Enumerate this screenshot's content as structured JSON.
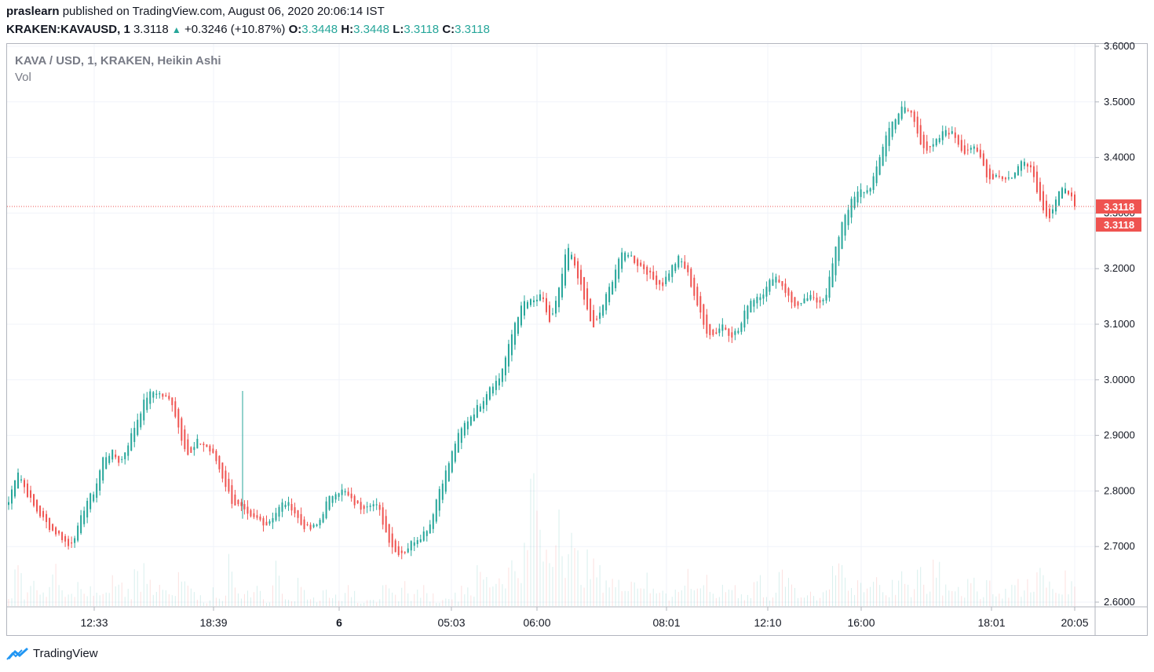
{
  "header": {
    "author": "praslearn",
    "published_text": "published on TradingView.com, August 06, 2020 20:06:14 IST",
    "symbol": "KRAKEN:KAVAUSD, 1",
    "last": "3.3118",
    "arrow_icon": "triangle-up-icon",
    "change": "+0.3246 (+10.87%)",
    "o_label": "O:",
    "o_value": "3.3448",
    "h_label": "H:",
    "h_value": "3.3448",
    "l_label": "L:",
    "l_value": "3.3118",
    "c_label": "C:",
    "c_value": "3.3118"
  },
  "legend": {
    "title": "KAVA / USD, 1, KRAKEN, Heikin Ashi",
    "volume": "Vol"
  },
  "footer": {
    "brand": "TradingView",
    "logo_icon": "tradingview-logo-icon"
  },
  "colors": {
    "up": "#26a69a",
    "down": "#ef5350",
    "grid": "#f0f3fa",
    "axis_text": "#131722",
    "price_line": "#ef5350"
  },
  "chart_data": {
    "type": "candlestick",
    "style": "Heikin Ashi",
    "ylim": [
      2.6,
      3.6
    ],
    "y_ticks": [
      "3.6000",
      "3.5000",
      "3.4000",
      "3.3000",
      "3.2000",
      "3.1000",
      "3.0000",
      "2.9000",
      "2.8000",
      "2.7000",
      "2.6000"
    ],
    "x_ticks": [
      "12:33",
      "18:39",
      "6",
      "05:03",
      "06:00",
      "08:01",
      "12:10",
      "16:00",
      "18:01",
      "20:05"
    ],
    "last_price": 3.3118,
    "price_labels": [
      "3.3118",
      "3.3118"
    ],
    "close_path": [
      2.78,
      2.84,
      2.8,
      2.77,
      2.75,
      2.73,
      2.72,
      2.7,
      2.73,
      2.78,
      2.8,
      2.86,
      2.87,
      2.85,
      2.89,
      2.93,
      2.97,
      2.98,
      2.97,
      2.96,
      2.9,
      2.86,
      2.89,
      2.88,
      2.86,
      2.82,
      2.78,
      2.77,
      2.75,
      2.75,
      2.74,
      2.76,
      2.78,
      2.77,
      2.74,
      2.73,
      2.74,
      2.78,
      2.8,
      2.8,
      2.78,
      2.77,
      2.78,
      2.77,
      2.72,
      2.69,
      2.69,
      2.71,
      2.72,
      2.74,
      2.8,
      2.84,
      2.89,
      2.92,
      2.94,
      2.96,
      2.99,
      3.0,
      3.05,
      3.11,
      3.14,
      3.14,
      3.15,
      3.1,
      3.16,
      3.24,
      3.2,
      3.14,
      3.09,
      3.13,
      3.17,
      3.22,
      3.23,
      3.21,
      3.2,
      3.18,
      3.17,
      3.2,
      3.22,
      3.19,
      3.14,
      3.09,
      3.08,
      3.1,
      3.08,
      3.09,
      3.14,
      3.15,
      3.16,
      3.19,
      3.17,
      3.14,
      3.13,
      3.15,
      3.14,
      3.15,
      3.22,
      3.29,
      3.32,
      3.34,
      3.34,
      3.38,
      3.44,
      3.47,
      3.49,
      3.48,
      3.43,
      3.41,
      3.43,
      3.45,
      3.44,
      3.41,
      3.42,
      3.4,
      3.36,
      3.37,
      3.36,
      3.37,
      3.4,
      3.38,
      3.32,
      3.29,
      3.33,
      3.35,
      3.3118
    ],
    "volume": [
      0.25,
      0.6,
      0.3,
      0.5,
      0.2,
      0.7,
      0.3,
      0.2,
      0.4,
      0.2,
      0.3,
      0.2,
      0.5,
      0.4,
      0.3,
      0.6,
      0.8,
      0.4,
      0.3,
      0.2,
      0.5,
      0.3,
      0.2,
      0.1,
      0.3,
      0.2,
      0.8,
      0.2,
      0.3,
      0.4,
      0.1,
      0.7,
      0.3,
      0.2,
      0.4,
      0.2,
      0.1,
      0.3,
      0.2,
      0.2,
      0.3,
      0.1,
      0.2,
      0.1,
      0.3,
      0.2,
      0.4,
      0.2,
      0.3,
      0.2,
      0.1,
      0.3,
      0.2,
      0.4,
      0.3,
      0.6,
      0.5,
      0.6,
      0.7,
      0.8,
      1.0,
      2.4,
      1.1,
      1.0,
      2.2,
      1.2,
      0.9,
      0.8,
      0.7,
      0.6,
      0.5,
      0.4,
      0.6,
      0.5,
      0.5,
      0.3,
      0.4,
      0.2,
      0.3,
      0.6,
      0.4,
      0.5,
      0.2,
      0.3,
      0.4,
      0.3,
      0.2,
      0.5,
      0.3,
      0.2,
      0.6,
      0.4,
      0.2,
      0.3,
      0.2,
      0.4,
      0.8,
      0.6,
      0.3,
      0.5,
      0.4,
      0.6,
      0.3,
      0.4,
      0.5,
      0.3,
      0.6,
      0.3,
      0.9,
      0.4,
      0.5,
      0.3,
      0.4,
      0.3,
      0.5,
      0.2,
      0.3,
      0.4,
      0.3,
      0.5,
      0.6,
      0.4,
      0.3,
      0.5,
      0.4
    ]
  }
}
